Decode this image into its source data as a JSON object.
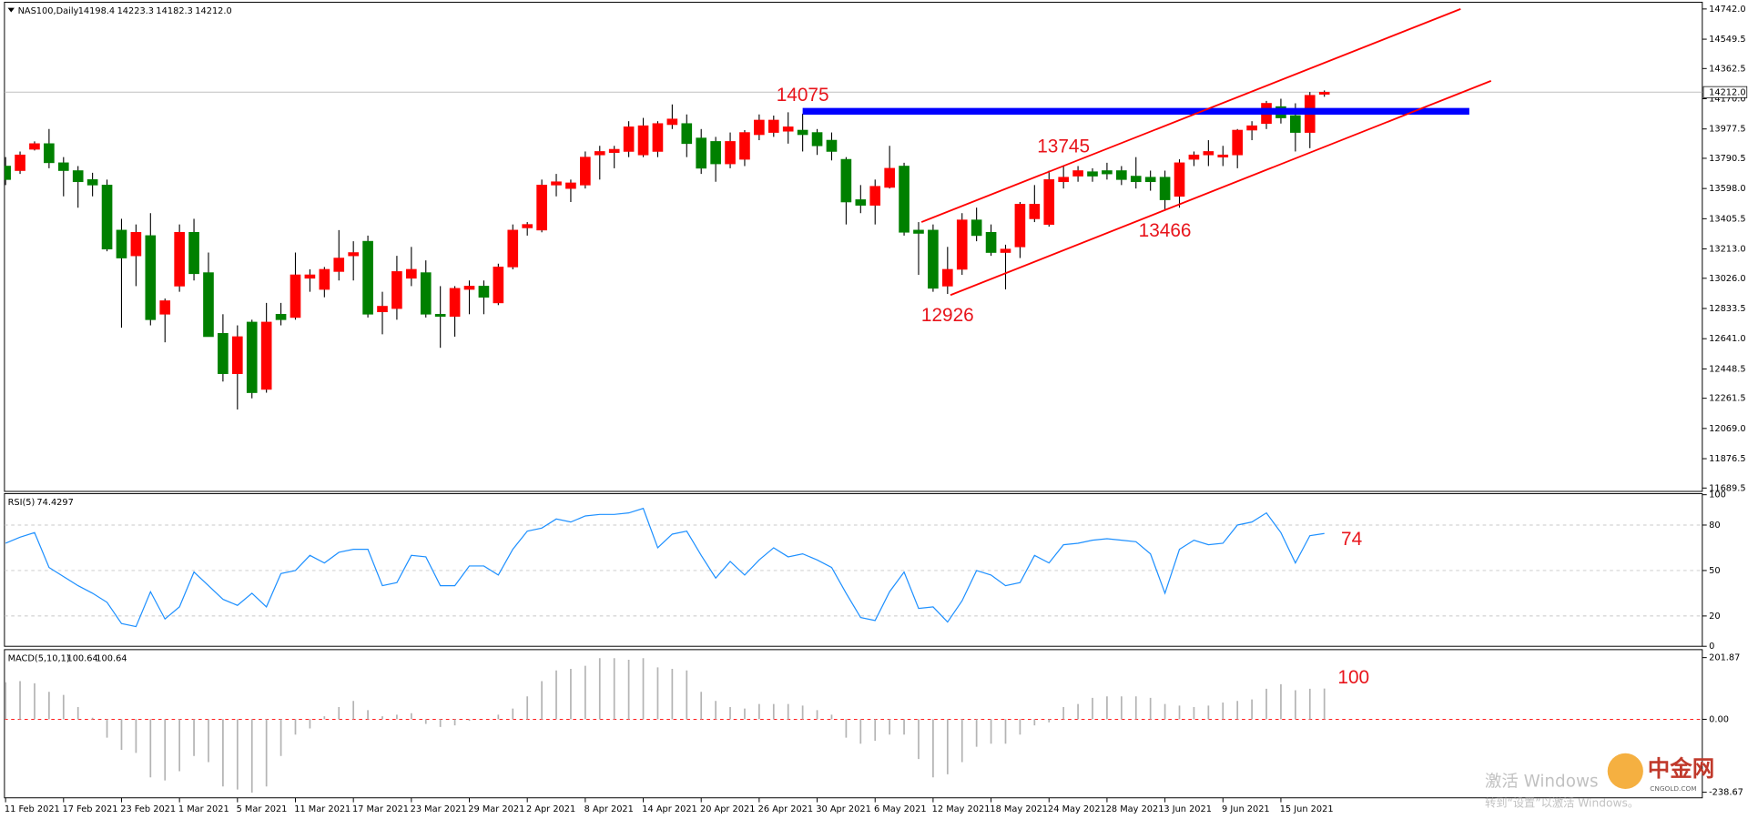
{
  "chart_data": [
    {
      "type": "candlestick",
      "title": "NAS100,Daily",
      "categories": [
        "11 Feb 2021",
        null,
        null,
        null,
        "17 Feb 2021",
        null,
        null,
        null,
        "23 Feb 2021",
        null,
        null,
        null,
        "1 Mar 2021",
        null,
        null,
        null,
        "5 Mar 2021",
        null,
        null,
        null,
        "11 Mar 2021",
        null,
        null,
        null,
        "17 Mar 2021",
        null,
        null,
        null,
        "23 Mar 2021",
        null,
        null,
        null,
        "29 Mar 2021",
        null,
        null,
        null,
        "2 Apr 2021",
        null,
        null,
        null,
        "8 Apr 2021",
        null,
        null,
        null,
        "14 Apr 2021",
        null,
        null,
        null,
        "20 Apr 2021",
        null,
        null,
        null,
        "26 Apr 2021",
        null,
        null,
        null,
        "30 Apr 2021",
        null,
        null,
        null,
        "6 May 2021",
        null,
        null,
        null,
        "12 May 2021",
        null,
        null,
        null,
        "18 May 2021",
        null,
        null,
        null,
        "24 May 2021",
        null,
        null,
        null,
        "28 May 2021",
        null,
        null,
        null,
        "3 Jun 2021",
        null,
        null,
        null,
        "9 Jun 2021",
        null,
        null,
        null,
        "15 Jun 2021",
        null,
        null,
        null
      ],
      "open": [
        13741,
        13712,
        13848,
        13884,
        13762,
        13712,
        13655,
        13620,
        13333,
        13169,
        13298,
        12797,
        12976,
        13319,
        13062,
        12675,
        12418,
        12747,
        12318,
        12797,
        12776,
        13026,
        12955,
        13069,
        13169,
        13262,
        12812,
        12833,
        13026,
        13062,
        12797,
        12783,
        12955,
        12976,
        12869,
        13098,
        13347,
        13333,
        13620,
        13598,
        13620,
        13812,
        13827,
        13834,
        13812,
        13834,
        14005,
        14012,
        13920,
        13898,
        13755,
        13784,
        13941,
        13955,
        13963,
        13970,
        13955,
        13906,
        13784,
        13527,
        13491,
        13605,
        13741,
        13333,
        13333,
        12976,
        13083,
        13398,
        13319,
        13190,
        13226,
        13405,
        13369,
        13641,
        13677,
        13705,
        13712,
        13712,
        13677,
        13670,
        13670,
        13548,
        13784,
        13812,
        13798,
        13812,
        13970,
        14012,
        14120,
        14063,
        13955,
        14198.4
      ],
      "high": [
        13798,
        13834,
        13898,
        13977,
        13798,
        13741,
        13698,
        13655,
        13405,
        13369,
        13441,
        12897,
        13369,
        13405,
        13190,
        12797,
        12726,
        12762,
        12869,
        12869,
        13190,
        13083,
        13098,
        13333,
        13262,
        13298,
        12940,
        13169,
        13226,
        13140,
        12976,
        12976,
        13012,
        13012,
        13119,
        13369,
        13384,
        13655,
        13691,
        13655,
        13834,
        13870,
        13870,
        14027,
        14048,
        14027,
        14134,
        14070,
        13977,
        13927,
        13955,
        13970,
        14070,
        14063,
        14084,
        14075,
        13977,
        13955,
        13798,
        13620,
        13655,
        13870,
        13762,
        13384,
        13369,
        13226,
        13441,
        13476,
        13369,
        13240,
        13512,
        13620,
        13712,
        13745,
        13741,
        13727,
        13762,
        13741,
        13798,
        13712,
        13712,
        13784,
        13834,
        13906,
        13870,
        13977,
        14027,
        14156,
        14170,
        14141,
        14213,
        14223.3
      ],
      "low": [
        13620,
        13691,
        13840,
        13727,
        13548,
        13476,
        13548,
        13198,
        12711,
        12976,
        12726,
        12618,
        12940,
        13012,
        12654,
        12368,
        12190,
        12261,
        12297,
        12726,
        12762,
        12940,
        12905,
        13012,
        13012,
        12776,
        12669,
        12762,
        12976,
        12776,
        12583,
        12654,
        12797,
        12797,
        12855,
        13083,
        13298,
        13319,
        13548,
        13512,
        13598,
        13655,
        13727,
        13798,
        13798,
        13798,
        13977,
        13798,
        13691,
        13641,
        13727,
        13741,
        13906,
        13927,
        13884,
        13834,
        13812,
        13777,
        13369,
        13441,
        13369,
        13598,
        13298,
        13048,
        12940,
        12926,
        13048,
        13262,
        13169,
        12955,
        13155,
        13384,
        13355,
        13598,
        13641,
        13641,
        13655,
        13620,
        13598,
        13584,
        13466,
        13476,
        13741,
        13741,
        13741,
        13727,
        13906,
        13977,
        14012,
        13834,
        13855,
        14182.3
      ],
      "close": [
        13655,
        13812,
        13884,
        13762,
        13712,
        13641,
        13620,
        13212,
        13155,
        13319,
        12762,
        12883,
        13319,
        13055,
        12654,
        12418,
        12654,
        12297,
        12747,
        12762,
        13048,
        13048,
        13083,
        13155,
        13190,
        12797,
        12848,
        13069,
        13083,
        12797,
        12783,
        12962,
        12976,
        12905,
        13098,
        13333,
        13369,
        13620,
        13641,
        13634,
        13798,
        13834,
        13848,
        13991,
        13998,
        14012,
        14041,
        13884,
        13727,
        13755,
        13898,
        13955,
        14034,
        14034,
        13991,
        13941,
        13870,
        13834,
        13512,
        13491,
        13612,
        13727,
        13319,
        13312,
        12962,
        13083,
        13398,
        13298,
        13190,
        13212,
        13498,
        13498,
        13655,
        13670,
        13712,
        13677,
        13691,
        13655,
        13641,
        13641,
        13526,
        13762,
        13812,
        13834,
        13812,
        13970,
        13998,
        14141,
        14048,
        13955,
        14192,
        14212
      ],
      "up_color": "#ff0000",
      "down_color": "#008000",
      "last_price": {
        "value": 14212,
        "label": "14212.0"
      },
      "ylim": [
        11668,
        14785
      ],
      "yticks": [
        {
          "value": 14742,
          "label": "14742.0"
        },
        14549.5,
        14362.5,
        {
          "value": 14170,
          "label": "14170.0"
        },
        13977.5,
        13790.5,
        {
          "value": 13598,
          "label": "13598.0"
        },
        13405.5,
        {
          "value": 13213,
          "label": "13213.0"
        },
        {
          "value": 13026,
          "label": "13026.0"
        },
        12833.5,
        {
          "value": 12641,
          "label": "12641.0"
        },
        12448.5,
        12261.5,
        {
          "value": 12069,
          "label": "12069.0"
        },
        11876.5,
        11689.5
      ],
      "annotations": [
        {
          "label": "14075",
          "x": 55,
          "y": 14075,
          "position": "above"
        },
        {
          "label": "13745",
          "x": 73,
          "y": 13745,
          "position": "above"
        },
        {
          "label": "12926",
          "x": 65,
          "y": 12926,
          "position": "below"
        },
        {
          "label": "13466",
          "x": 80,
          "y": 13466,
          "position": "below"
        }
      ],
      "horizontal_line": {
        "y": 14090,
        "x": [
          55,
          101
        ],
        "color": "#0000ff"
      },
      "trend_lines": [
        {
          "x": [
            63.2,
            100.4
          ],
          "y": [
            13384,
            14742
          ],
          "color": "#ff0000"
        },
        {
          "x": [
            65.2,
            102.5
          ],
          "y": [
            12919,
            14284
          ],
          "color": "#ff0000"
        }
      ],
      "watermark": [
        "激活 Windows",
        "转到“设置”以激活 Windows。"
      ],
      "logo": {
        "name": "中金网",
        "site": "CNGOLD.COM"
      }
    },
    {
      "type": "line",
      "title": "RSI(5)",
      "color": "#1e90ff",
      "values": [
        68,
        72,
        75,
        52,
        46,
        40,
        35,
        29,
        15,
        13,
        36,
        18,
        26,
        49,
        40,
        31,
        27,
        35,
        26,
        48,
        50,
        60,
        55,
        62,
        64,
        64,
        40,
        42,
        60,
        59,
        40,
        40,
        53,
        53,
        47,
        64,
        76,
        78,
        84,
        82,
        86,
        87,
        87,
        88,
        91,
        65,
        74,
        76,
        60,
        45,
        56,
        47,
        57,
        65,
        59,
        61,
        57,
        52,
        35,
        19,
        17,
        36,
        49,
        25,
        26,
        16,
        30,
        50,
        47,
        40,
        42,
        60,
        55,
        67,
        68,
        70,
        71,
        70,
        69,
        61,
        35,
        64,
        70,
        67,
        68,
        80,
        82,
        88,
        75,
        55,
        73,
        74.4297
      ],
      "last_value_label": "74",
      "ylim": [
        0,
        100
      ],
      "yticks": [
        0,
        20,
        50,
        80,
        100
      ]
    },
    {
      "type": "bar",
      "title": "MACD(5,10,1)",
      "color": "#b4b4b4",
      "values": [
        121,
        125,
        118,
        90,
        80,
        40,
        5,
        -60,
        -100,
        -110,
        -190,
        -200,
        -170,
        -120,
        -140,
        -220,
        -230,
        -240,
        -220,
        -120,
        -50,
        -30,
        10,
        40,
        60,
        30,
        10,
        15,
        20,
        -15,
        -25,
        -20,
        -5,
        0,
        15,
        35,
        75,
        125,
        160,
        165,
        175,
        200,
        200,
        195,
        200,
        170,
        165,
        160,
        90,
        60,
        40,
        35,
        50,
        50,
        50,
        45,
        30,
        15,
        -60,
        -80,
        -70,
        -50,
        -50,
        -130,
        -190,
        -180,
        -140,
        -90,
        -80,
        -80,
        -50,
        -20,
        -10,
        40,
        50,
        70,
        75,
        75,
        75,
        70,
        50,
        45,
        40,
        45,
        55,
        60,
        65,
        100,
        115,
        95,
        100,
        100.64
      ],
      "last_value_label": "100",
      "ylim": [
        -257,
        228
      ],
      "yticks": [
        201.87,
        {
          "value": 0,
          "label": "0.00"
        },
        {
          "value": -238.67,
          "label": "-238.67"
        }
      ]
    }
  ]
}
